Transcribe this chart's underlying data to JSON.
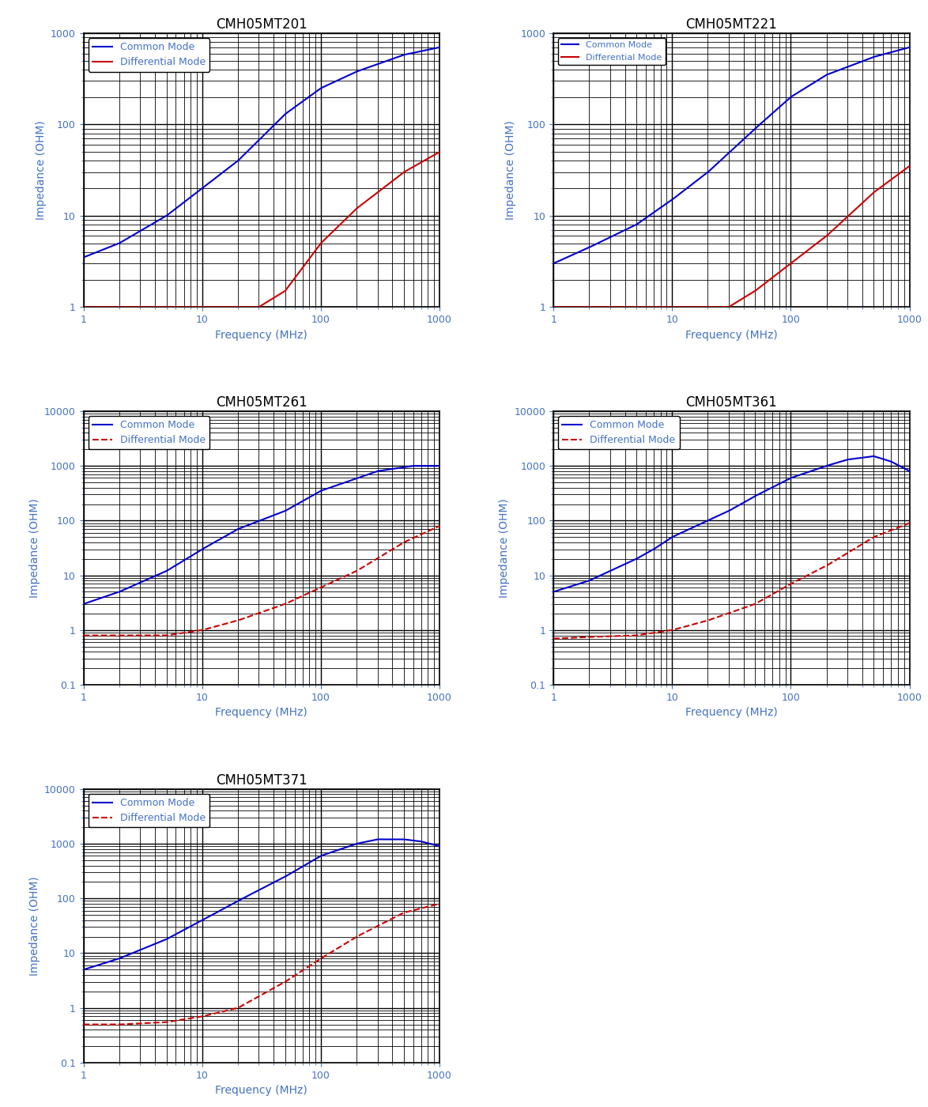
{
  "charts": [
    {
      "title": "CMH05MT201",
      "ylim": [
        1,
        1000
      ],
      "cm_style": "solid",
      "dm_style": "solid",
      "cm_points": [
        [
          1,
          3.5
        ],
        [
          2,
          5.0
        ],
        [
          5,
          10
        ],
        [
          10,
          20
        ],
        [
          20,
          40
        ],
        [
          50,
          130
        ],
        [
          100,
          250
        ],
        [
          200,
          380
        ],
        [
          500,
          580
        ],
        [
          1000,
          700
        ]
      ],
      "dm_points": [
        [
          30,
          1.0
        ],
        [
          50,
          1.5
        ],
        [
          100,
          5
        ],
        [
          200,
          12
        ],
        [
          500,
          30
        ],
        [
          1000,
          50
        ]
      ],
      "cm_color": "#0000CD",
      "dm_color": "#CC0000",
      "legend_fontsize": 9
    },
    {
      "title": "CMH05MT221",
      "ylim": [
        1,
        1000
      ],
      "cm_style": "solid",
      "dm_style": "solid",
      "cm_points": [
        [
          1,
          3.0
        ],
        [
          2,
          4.5
        ],
        [
          5,
          8
        ],
        [
          10,
          15
        ],
        [
          20,
          30
        ],
        [
          50,
          90
        ],
        [
          100,
          200
        ],
        [
          200,
          350
        ],
        [
          500,
          550
        ],
        [
          1000,
          700
        ]
      ],
      "dm_points": [
        [
          30,
          1.0
        ],
        [
          50,
          1.5
        ],
        [
          100,
          3
        ],
        [
          200,
          6
        ],
        [
          500,
          18
        ],
        [
          1000,
          35
        ]
      ],
      "cm_color": "#0000CD",
      "dm_color": "#CC0000",
      "legend_fontsize": 8
    },
    {
      "title": "CMH05MT261",
      "ylim": [
        0.1,
        10000
      ],
      "cm_style": "solid",
      "dm_style": "dashed",
      "cm_points": [
        [
          1,
          3.0
        ],
        [
          2,
          5
        ],
        [
          5,
          12
        ],
        [
          10,
          30
        ],
        [
          20,
          70
        ],
        [
          50,
          150
        ],
        [
          100,
          350
        ],
        [
          300,
          800
        ],
        [
          600,
          1000
        ],
        [
          1000,
          1000
        ]
      ],
      "dm_points": [
        [
          1,
          0.8
        ],
        [
          2,
          0.8
        ],
        [
          5,
          0.8
        ],
        [
          10,
          1.0
        ],
        [
          20,
          1.5
        ],
        [
          50,
          3
        ],
        [
          100,
          6
        ],
        [
          200,
          12
        ],
        [
          500,
          40
        ],
        [
          1000,
          80
        ]
      ],
      "cm_color": "#0000CD",
      "dm_color": "#CC0000",
      "legend_fontsize": 9
    },
    {
      "title": "CMH05MT361",
      "ylim": [
        0.1,
        10000
      ],
      "cm_style": "solid",
      "dm_style": "dashed",
      "cm_points": [
        [
          1,
          5.0
        ],
        [
          2,
          8
        ],
        [
          3,
          12
        ],
        [
          5,
          20
        ],
        [
          7,
          30
        ],
        [
          10,
          50
        ],
        [
          20,
          100
        ],
        [
          30,
          150
        ],
        [
          50,
          280
        ],
        [
          100,
          600
        ],
        [
          200,
          1000
        ],
        [
          300,
          1300
        ],
        [
          500,
          1500
        ],
        [
          700,
          1200
        ],
        [
          1000,
          800
        ]
      ],
      "dm_points": [
        [
          1,
          0.7
        ],
        [
          2,
          0.75
        ],
        [
          5,
          0.8
        ],
        [
          10,
          1.0
        ],
        [
          20,
          1.5
        ],
        [
          50,
          3
        ],
        [
          100,
          7
        ],
        [
          200,
          15
        ],
        [
          500,
          50
        ],
        [
          1000,
          90
        ]
      ],
      "cm_color": "#0000CD",
      "dm_color": "#CC0000",
      "legend_fontsize": 9
    },
    {
      "title": "CMH05MT371",
      "ylim": [
        0.1,
        10000
      ],
      "cm_style": "solid",
      "dm_style": "dashed",
      "cm_points": [
        [
          1,
          5.0
        ],
        [
          2,
          8
        ],
        [
          5,
          18
        ],
        [
          10,
          40
        ],
        [
          20,
          90
        ],
        [
          50,
          250
        ],
        [
          100,
          600
        ],
        [
          200,
          1000
        ],
        [
          300,
          1200
        ],
        [
          500,
          1200
        ],
        [
          700,
          1100
        ],
        [
          1000,
          900
        ]
      ],
      "dm_points": [
        [
          1,
          0.5
        ],
        [
          2,
          0.5
        ],
        [
          5,
          0.55
        ],
        [
          10,
          0.7
        ],
        [
          20,
          1.0
        ],
        [
          50,
          3
        ],
        [
          100,
          8
        ],
        [
          200,
          20
        ],
        [
          500,
          55
        ],
        [
          1000,
          80
        ]
      ],
      "cm_color": "#0000CD",
      "dm_color": "#CC0000",
      "legend_fontsize": 9
    }
  ],
  "xlabel": "Frequency (MHz)",
  "ylabel": "Impedance (OHM)",
  "xlim": [
    1,
    1000
  ],
  "legend_cm": "Common Mode",
  "legend_dm": "Differential Mode",
  "title_fontsize": 12,
  "label_fontsize": 10,
  "tick_fontsize": 9,
  "line_width": 1.5,
  "bg_color": "#ffffff",
  "grid_major_color": "#000000",
  "grid_minor_color": "#000000",
  "axis_label_color": "#4472C4",
  "tick_label_color": "#4472C4",
  "legend_text_color": "#4472C4",
  "title_color": "#000000"
}
